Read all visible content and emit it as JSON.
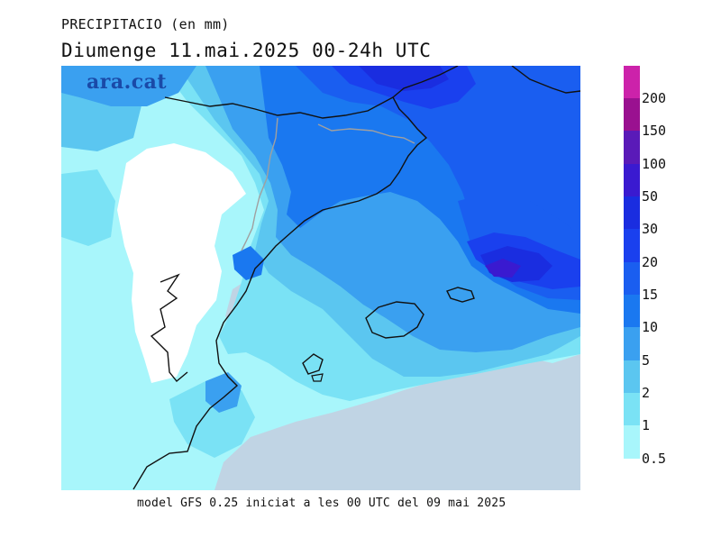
{
  "header": {
    "title": "PRECIPITACIO (en mm)",
    "subtitle": "Diumenge  11.mai.2025 00-24h UTC"
  },
  "logo": {
    "text": "ara.cat"
  },
  "footer": {
    "text": "model GFS 0.25 iniciat a les 00 UTC del 09 mai 2025"
  },
  "legend": {
    "labels": [
      "200",
      "150",
      "100",
      "50",
      "30",
      "20",
      "15",
      "10",
      "5",
      "2",
      "1",
      "0.5"
    ],
    "colors": [
      "#cc22aa",
      "#9a1190",
      "#5a1ab8",
      "#3a1ad0",
      "#1a2de0",
      "#1a40ee",
      "#1a5ef0",
      "#1a78f0",
      "#3aa0f0",
      "#5bc6f0",
      "#7ae2f5",
      "#a8f6fb"
    ]
  },
  "map": {
    "colors": {
      "land_dry": "#ffffff",
      "sea_dry": "#c0d4e4",
      "coast": "#111111",
      "border": "#a0a0a0",
      "p05": "#a8f6fb",
      "p1": "#7ae2f5",
      "p2": "#5bc6f0",
      "p5": "#3aa0f0",
      "p10": "#1a78f0",
      "p15": "#1a5ef0",
      "p20": "#1a40ee",
      "p30": "#1a2de0",
      "p50": "#3a1ad0"
    }
  }
}
